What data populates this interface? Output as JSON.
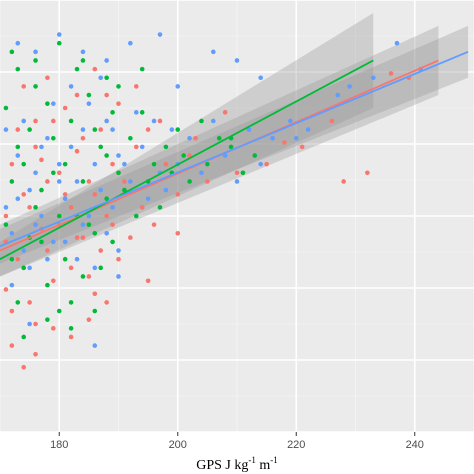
{
  "chart_data": {
    "type": "scatter",
    "title": "",
    "xlabel": "GPS J kg -1 m-1",
    "xlabel_parts": {
      "base": "GPS J kg",
      "sup1": "-1",
      "mid": " m",
      "sup2": "-1"
    },
    "ylabel": "",
    "xlim": [
      170,
      250
    ],
    "ylim": [
      0,
      100
    ],
    "x_ticks": [
      180,
      200,
      220,
      240
    ],
    "x_minor_ticks": [
      170,
      190,
      210,
      230,
      250
    ],
    "grid": true,
    "background": "#ebebeb",
    "legend": "none",
    "series": [
      {
        "color": "#f8766d",
        "fit": {
          "x": [
            170,
            244
          ],
          "y": [
            42,
            86
          ]
        },
        "ci": {
          "x": [
            170,
            244
          ],
          "lower": [
            36,
            78
          ],
          "upper": [
            48,
            94
          ]
        },
        "points": [
          [
            171,
            50
          ],
          [
            172,
            62
          ],
          [
            173,
            40
          ],
          [
            174,
            55
          ],
          [
            175,
            30
          ],
          [
            176,
            66
          ],
          [
            177,
            47
          ],
          [
            178,
            58
          ],
          [
            179,
            35
          ],
          [
            180,
            60
          ],
          [
            171,
            44
          ],
          [
            172,
            28
          ],
          [
            173,
            70
          ],
          [
            174,
            38
          ],
          [
            175,
            52
          ],
          [
            176,
            25
          ],
          [
            177,
            63
          ],
          [
            178,
            42
          ],
          [
            179,
            72
          ],
          [
            180,
            48
          ],
          [
            181,
            55
          ],
          [
            182,
            38
          ],
          [
            183,
            65
          ],
          [
            184,
            45
          ],
          [
            185,
            58
          ],
          [
            186,
            32
          ],
          [
            187,
            70
          ],
          [
            188,
            50
          ],
          [
            189,
            62
          ],
          [
            190,
            40
          ],
          [
            181,
            75
          ],
          [
            182,
            52
          ],
          [
            183,
            45
          ],
          [
            184,
            68
          ],
          [
            185,
            36
          ],
          [
            186,
            55
          ],
          [
            187,
            42
          ],
          [
            188,
            78
          ],
          [
            189,
            48
          ],
          [
            190,
            60
          ],
          [
            191,
            58
          ],
          [
            192,
            45
          ],
          [
            193,
            66
          ],
          [
            194,
            52
          ],
          [
            195,
            70
          ],
          [
            196,
            48
          ],
          [
            198,
            62
          ],
          [
            200,
            55
          ],
          [
            202,
            64
          ],
          [
            205,
            58
          ],
          [
            174,
            80
          ],
          [
            178,
            82
          ],
          [
            183,
            78
          ],
          [
            186,
            84
          ],
          [
            190,
            76
          ],
          [
            193,
            80
          ],
          [
            197,
            72
          ],
          [
            203,
            68
          ],
          [
            208,
            74
          ],
          [
            212,
            70
          ],
          [
            172,
            20
          ],
          [
            176,
            18
          ],
          [
            179,
            24
          ],
          [
            182,
            22
          ],
          [
            185,
            26
          ],
          [
            174,
            15
          ],
          [
            221,
            66
          ],
          [
            226,
            72
          ],
          [
            228,
            58
          ],
          [
            232,
            60
          ],
          [
            236,
            83
          ],
          [
            239,
            82
          ],
          [
            176,
            72
          ],
          [
            188,
            30
          ],
          [
            195,
            35
          ],
          [
            200,
            46
          ],
          [
            210,
            60
          ],
          [
            215,
            62
          ],
          [
            218,
            67
          ],
          [
            171,
            33
          ]
        ]
      },
      {
        "color": "#00ba38",
        "fit": {
          "x": [
            170,
            233
          ],
          "y": [
            40,
            86
          ]
        },
        "ci": {
          "x": [
            170,
            233
          ],
          "lower": [
            36,
            75
          ],
          "upper": [
            44,
            97
          ]
        },
        "points": [
          [
            171,
            48
          ],
          [
            172,
            58
          ],
          [
            173,
            66
          ],
          [
            174,
            38
          ],
          [
            175,
            70
          ],
          [
            176,
            52
          ],
          [
            177,
            44
          ],
          [
            178,
            76
          ],
          [
            179,
            60
          ],
          [
            180,
            50
          ],
          [
            171,
            75
          ],
          [
            172,
            40
          ],
          [
            173,
            30
          ],
          [
            174,
            62
          ],
          [
            175,
            45
          ],
          [
            176,
            80
          ],
          [
            177,
            56
          ],
          [
            178,
            34
          ],
          [
            179,
            68
          ],
          [
            180,
            28
          ],
          [
            181,
            62
          ],
          [
            182,
            72
          ],
          [
            183,
            50
          ],
          [
            184,
            58
          ],
          [
            185,
            78
          ],
          [
            186,
            46
          ],
          [
            187,
            66
          ],
          [
            188,
            54
          ],
          [
            189,
            74
          ],
          [
            190,
            60
          ],
          [
            181,
            40
          ],
          [
            182,
            30
          ],
          [
            183,
            84
          ],
          [
            184,
            36
          ],
          [
            185,
            48
          ],
          [
            186,
            70
          ],
          [
            187,
            38
          ],
          [
            188,
            64
          ],
          [
            189,
            44
          ],
          [
            190,
            80
          ],
          [
            191,
            56
          ],
          [
            192,
            68
          ],
          [
            193,
            50
          ],
          [
            194,
            74
          ],
          [
            195,
            58
          ],
          [
            196,
            62
          ],
          [
            197,
            52
          ],
          [
            198,
            66
          ],
          [
            199,
            60
          ],
          [
            200,
            70
          ],
          [
            201,
            64
          ],
          [
            202,
            58
          ],
          [
            204,
            72
          ],
          [
            205,
            62
          ],
          [
            207,
            68
          ],
          [
            209,
            66
          ],
          [
            211,
            60
          ],
          [
            213,
            64
          ],
          [
            172,
            88
          ],
          [
            176,
            86
          ],
          [
            180,
            90
          ],
          [
            184,
            86
          ],
          [
            188,
            82
          ],
          [
            174,
            22
          ],
          [
            178,
            26
          ],
          [
            182,
            24
          ],
          [
            186,
            28
          ],
          [
            173,
            84
          ],
          [
            194,
            84
          ],
          [
            209,
            68
          ]
        ]
      },
      {
        "color": "#619cff",
        "fit": {
          "x": [
            170,
            249
          ],
          "y": [
            43,
            88
          ]
        },
        "ci": {
          "x": [
            170,
            249
          ],
          "lower": [
            39,
            82
          ],
          "upper": [
            47,
            94
          ]
        },
        "points": [
          [
            171,
            52
          ],
          [
            172,
            46
          ],
          [
            173,
            64
          ],
          [
            174,
            42
          ],
          [
            175,
            56
          ],
          [
            176,
            60
          ],
          [
            177,
            50
          ],
          [
            178,
            68
          ],
          [
            179,
            44
          ],
          [
            180,
            58
          ],
          [
            171,
            70
          ],
          [
            172,
            34
          ],
          [
            173,
            54
          ],
          [
            174,
            72
          ],
          [
            175,
            38
          ],
          [
            176,
            48
          ],
          [
            177,
            66
          ],
          [
            178,
            40
          ],
          [
            179,
            76
          ],
          [
            180,
            62
          ],
          [
            181,
            54
          ],
          [
            182,
            66
          ],
          [
            183,
            58
          ],
          [
            184,
            70
          ],
          [
            185,
            50
          ],
          [
            186,
            62
          ],
          [
            187,
            56
          ],
          [
            188,
            72
          ],
          [
            189,
            52
          ],
          [
            190,
            64
          ],
          [
            181,
            44
          ],
          [
            182,
            80
          ],
          [
            183,
            40
          ],
          [
            184,
            48
          ],
          [
            185,
            76
          ],
          [
            186,
            38
          ],
          [
            187,
            82
          ],
          [
            188,
            46
          ],
          [
            189,
            70
          ],
          [
            190,
            42
          ],
          [
            191,
            62
          ],
          [
            192,
            58
          ],
          [
            193,
            74
          ],
          [
            194,
            66
          ],
          [
            195,
            54
          ],
          [
            196,
            72
          ],
          [
            197,
            60
          ],
          [
            198,
            56
          ],
          [
            199,
            70
          ],
          [
            200,
            62
          ],
          [
            202,
            68
          ],
          [
            204,
            60
          ],
          [
            206,
            72
          ],
          [
            208,
            64
          ],
          [
            210,
            58
          ],
          [
            212,
            70
          ],
          [
            214,
            62
          ],
          [
            216,
            68
          ],
          [
            219,
            72
          ],
          [
            222,
            70
          ],
          [
            176,
            88
          ],
          [
            180,
            92
          ],
          [
            184,
            88
          ],
          [
            188,
            86
          ],
          [
            192,
            90
          ],
          [
            197,
            92
          ],
          [
            206,
            88
          ],
          [
            210,
            86
          ],
          [
            227,
            78
          ],
          [
            233,
            82
          ],
          [
            237,
            90
          ],
          [
            241,
            84
          ],
          [
            229,
            80
          ],
          [
            175,
            25
          ],
          [
            190,
            36
          ],
          [
            220,
            68
          ],
          [
            186,
            20
          ],
          [
            173,
            90
          ],
          [
            200,
            80
          ],
          [
            214,
            82
          ]
        ]
      }
    ]
  }
}
